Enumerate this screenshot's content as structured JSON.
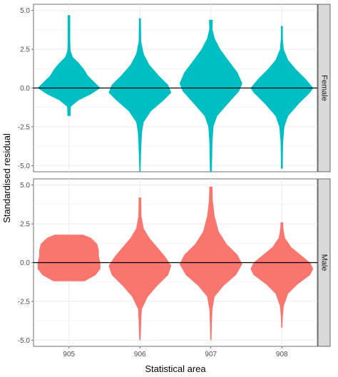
{
  "chart_data": {
    "type": "violin",
    "xlabel": "Statistical area",
    "ylabel": "Standardised residual",
    "categories": [
      "905",
      "906",
      "907",
      "908"
    ],
    "ylim": [
      -5.4,
      5.4
    ],
    "yticks": [
      5.0,
      2.5,
      0.0,
      -2.5,
      -5.0
    ],
    "ytick_labels": [
      "5.0",
      "2.5",
      "0.0",
      "-2.5",
      "-5.0"
    ],
    "reference_line_y": 0.0,
    "grid": true,
    "legend": "none",
    "facet_labels": [
      "Female",
      "Male"
    ],
    "colors": {
      "Female": "#00BFC4",
      "Male": "#F8766D",
      "strip": "#D9D9D9",
      "grid": "#EBEBEB"
    },
    "panels": [
      {
        "facet": "Female",
        "violins": [
          {
            "category": "905",
            "profile": [
              [
                -1.8,
                0.05
              ],
              [
                -1.5,
                0.05
              ],
              [
                -1.2,
                0.06
              ],
              [
                -0.8,
                0.3
              ],
              [
                -0.4,
                0.7
              ],
              [
                0.0,
                1.0
              ],
              [
                0.4,
                0.8
              ],
              [
                0.8,
                0.6
              ],
              [
                1.2,
                0.48
              ],
              [
                1.6,
                0.32
              ],
              [
                2.0,
                0.12
              ],
              [
                2.4,
                0.05
              ],
              [
                3.0,
                0.04
              ],
              [
                4.7,
                0.04
              ]
            ]
          },
          {
            "category": "906",
            "profile": [
              [
                -5.4,
                0.02
              ],
              [
                -4.5,
                0.03
              ],
              [
                -3.5,
                0.05
              ],
              [
                -2.8,
                0.07
              ],
              [
                -2.2,
                0.12
              ],
              [
                -1.5,
                0.35
              ],
              [
                -0.8,
                0.75
              ],
              [
                -0.3,
                1.0
              ],
              [
                0.2,
                0.9
              ],
              [
                0.8,
                0.6
              ],
              [
                1.5,
                0.3
              ],
              [
                2.2,
                0.12
              ],
              [
                3.0,
                0.04
              ],
              [
                4.5,
                0.03
              ]
            ]
          },
          {
            "category": "907",
            "profile": [
              [
                -5.4,
                0.03
              ],
              [
                -4.5,
                0.04
              ],
              [
                -3.5,
                0.05
              ],
              [
                -2.5,
                0.08
              ],
              [
                -1.8,
                0.2
              ],
              [
                -1.0,
                0.55
              ],
              [
                -0.2,
                0.9
              ],
              [
                0.3,
                1.0
              ],
              [
                1.0,
                0.85
              ],
              [
                1.8,
                0.55
              ],
              [
                2.5,
                0.3
              ],
              [
                3.2,
                0.12
              ],
              [
                3.8,
                0.05
              ],
              [
                4.4,
                0.06
              ]
            ]
          },
          {
            "category": "908",
            "profile": [
              [
                -5.2,
                0.03
              ],
              [
                -4.5,
                0.03
              ],
              [
                -3.5,
                0.04
              ],
              [
                -2.5,
                0.08
              ],
              [
                -1.8,
                0.2
              ],
              [
                -1.0,
                0.55
              ],
              [
                -0.3,
                0.9
              ],
              [
                0.0,
                1.0
              ],
              [
                0.6,
                0.75
              ],
              [
                1.2,
                0.45
              ],
              [
                1.8,
                0.2
              ],
              [
                2.5,
                0.06
              ],
              [
                3.2,
                0.03
              ],
              [
                4.0,
                0.03
              ]
            ]
          }
        ]
      },
      {
        "facet": "Male",
        "violins": [
          {
            "category": "905",
            "profile": [
              [
                -1.2,
                0.5
              ],
              [
                -0.8,
                0.85
              ],
              [
                -0.4,
                1.0
              ],
              [
                0.0,
                1.0
              ],
              [
                0.4,
                0.95
              ],
              [
                0.8,
                0.95
              ],
              [
                1.2,
                0.9
              ],
              [
                1.6,
                0.7
              ],
              [
                1.8,
                0.45
              ]
            ]
          },
          {
            "category": "906",
            "profile": [
              [
                -5.0,
                0.02
              ],
              [
                -4.5,
                0.03
              ],
              [
                -3.8,
                0.04
              ],
              [
                -3.0,
                0.06
              ],
              [
                -2.2,
                0.25
              ],
              [
                -1.5,
                0.55
              ],
              [
                -0.8,
                0.9
              ],
              [
                -0.2,
                1.0
              ],
              [
                0.4,
                0.8
              ],
              [
                1.0,
                0.55
              ],
              [
                1.6,
                0.3
              ],
              [
                2.2,
                0.12
              ],
              [
                3.0,
                0.05
              ],
              [
                4.2,
                0.04
              ]
            ]
          },
          {
            "category": "907",
            "profile": [
              [
                -5.0,
                0.02
              ],
              [
                -4.0,
                0.03
              ],
              [
                -3.0,
                0.05
              ],
              [
                -2.2,
                0.12
              ],
              [
                -1.5,
                0.4
              ],
              [
                -0.8,
                0.8
              ],
              [
                -0.1,
                1.0
              ],
              [
                0.5,
                0.85
              ],
              [
                1.2,
                0.5
              ],
              [
                2.0,
                0.25
              ],
              [
                3.0,
                0.12
              ],
              [
                4.0,
                0.06
              ],
              [
                4.9,
                0.05
              ]
            ]
          },
          {
            "category": "908",
            "profile": [
              [
                -4.2,
                0.02
              ],
              [
                -3.5,
                0.03
              ],
              [
                -2.8,
                0.06
              ],
              [
                -2.0,
                0.2
              ],
              [
                -1.4,
                0.5
              ],
              [
                -0.8,
                0.9
              ],
              [
                -0.4,
                1.0
              ],
              [
                0.0,
                0.9
              ],
              [
                0.5,
                0.6
              ],
              [
                1.0,
                0.3
              ],
              [
                1.6,
                0.1
              ],
              [
                2.2,
                0.05
              ],
              [
                2.6,
                0.04
              ]
            ]
          }
        ]
      }
    ]
  }
}
